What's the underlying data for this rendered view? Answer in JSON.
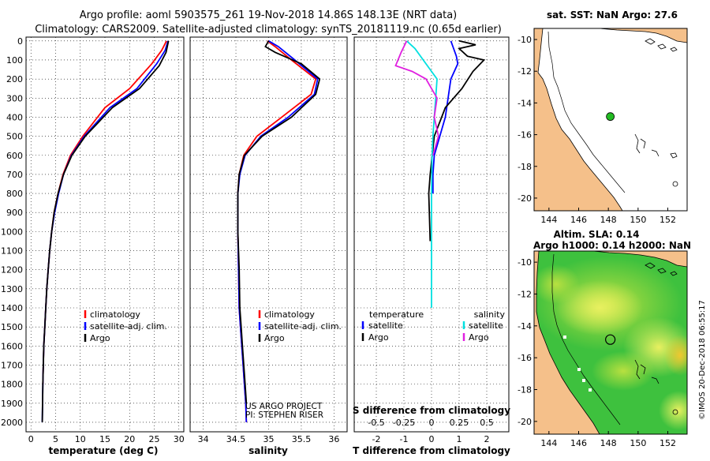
{
  "title_line1": "Argo profile: aoml 5903575_261 19-Nov-2018 14.86S 148.13E (NRT data)",
  "title_line2": "Climatology: CARS2009. Satellite-adjusted climatology: synTS_20181119.nc (0.65d earlier)",
  "colors": {
    "clim": "#ff0000",
    "sat": "#0000ff",
    "argo": "#000000",
    "sat_s": "#00e0e0",
    "argo_s": "#e020e0",
    "land": "#f5c08a",
    "float": "#22bb22"
  },
  "depth_ticks": [
    "0",
    "100",
    "200",
    "300",
    "400",
    "500",
    "600",
    "700",
    "800",
    "900",
    "1000",
    "1100",
    "1200",
    "1300",
    "1400",
    "1500",
    "1600",
    "1700",
    "1800",
    "1900",
    "2000"
  ],
  "attribution_lines": [
    "US ARGO PROJECT",
    "PI: STEPHEN RISER"
  ],
  "sidebar_stamp": "©IMOS 20-Dec-2018 06:55:17",
  "chart_data": [
    {
      "type": "line",
      "name": "temperature-panel",
      "xlabel": "temperature (deg C)",
      "ylabel": "depth",
      "xlim": [
        -1,
        31
      ],
      "ylim": [
        2050,
        -20
      ],
      "xticks": [
        "0",
        "5",
        "10",
        "15",
        "20",
        "25",
        "30"
      ],
      "legend": [
        "climatology",
        "satellite-adj. clim.",
        "Argo"
      ],
      "series": [
        {
          "name": "climatology",
          "color": "#ff0000",
          "x": [
            27.5,
            26.5,
            24.5,
            20,
            15,
            10.5,
            8,
            6.5,
            5.5,
            4.7,
            4.2,
            3.8,
            3.5,
            3.2,
            3.0,
            2.8,
            2.6,
            2.5,
            2.4
          ],
          "y": [
            0,
            50,
            120,
            250,
            350,
            500,
            600,
            700,
            800,
            900,
            1000,
            1100,
            1200,
            1300,
            1400,
            1500,
            1600,
            1700,
            1800
          ]
        },
        {
          "name": "satellite-adj. clim.",
          "color": "#0000ff",
          "x": [
            27.8,
            27.2,
            25.5,
            21.5,
            16,
            10.8,
            8.2,
            6.6,
            5.6,
            4.8,
            4.2,
            3.8,
            3.5,
            3.2,
            3.0,
            2.8,
            2.6,
            2.5,
            2.4,
            2.3
          ],
          "y": [
            0,
            50,
            120,
            250,
            350,
            500,
            600,
            700,
            800,
            900,
            1000,
            1100,
            1200,
            1300,
            1400,
            1500,
            1600,
            1700,
            1800,
            2000
          ]
        },
        {
          "name": "Argo",
          "color": "#000000",
          "x": [
            27.9,
            27.4,
            26,
            22,
            16.5,
            11,
            8.3,
            6.6,
            5.5,
            4.7,
            4.2,
            3.8,
            3.5,
            3.2,
            3.0,
            2.8,
            2.6,
            2.5,
            2.4,
            2.3
          ],
          "y": [
            0,
            60,
            130,
            250,
            350,
            500,
            600,
            700,
            800,
            900,
            1000,
            1100,
            1200,
            1300,
            1400,
            1500,
            1600,
            1700,
            1800,
            2000
          ]
        }
      ]
    },
    {
      "type": "line",
      "name": "salinity-panel",
      "xlabel": "salinity",
      "xlim": [
        33.8,
        36.2
      ],
      "ylim": [
        2050,
        -20
      ],
      "xticks": [
        "34",
        "34.5",
        "35",
        "35.5",
        "36"
      ],
      "legend": [
        "climatology",
        "satellite-adj. clim.",
        "Argo"
      ],
      "series": [
        {
          "name": "climatology",
          "color": "#ff0000",
          "x": [
            34.98,
            35.1,
            35.35,
            35.72,
            35.65,
            35.2,
            34.82,
            34.62,
            34.55,
            34.53,
            34.53,
            34.54,
            34.55,
            34.57,
            34.59,
            34.61,
            34.63,
            34.65,
            34.66
          ],
          "y": [
            0,
            30,
            100,
            200,
            280,
            400,
            500,
            600,
            700,
            800,
            1000,
            1200,
            1400,
            1500,
            1600,
            1700,
            1800,
            1900,
            2000
          ]
        },
        {
          "name": "satellite-adj. clim.",
          "color": "#0000ff",
          "x": [
            35.0,
            35.15,
            35.4,
            35.75,
            35.7,
            35.3,
            34.88,
            34.64,
            34.56,
            34.53,
            34.53,
            34.54,
            34.55,
            34.57,
            34.59,
            34.61,
            34.63,
            34.65,
            34.66
          ],
          "y": [
            0,
            30,
            100,
            200,
            280,
            400,
            500,
            600,
            700,
            800,
            1000,
            1200,
            1400,
            1500,
            1600,
            1700,
            1800,
            1900,
            2000
          ]
        },
        {
          "name": "Argo",
          "color": "#000000",
          "x": [
            35.0,
            34.95,
            35.1,
            35.5,
            35.78,
            35.72,
            35.35,
            34.9,
            34.63,
            34.55,
            34.53,
            34.53,
            34.55,
            34.56,
            34.58,
            34.6,
            34.62,
            34.64,
            34.66
          ],
          "y": [
            0,
            30,
            60,
            120,
            200,
            280,
            400,
            500,
            600,
            700,
            800,
            1000,
            1200,
            1400,
            1500,
            1600,
            1700,
            1800,
            1900
          ]
        }
      ]
    },
    {
      "type": "line",
      "name": "difference-panel",
      "xlabel": "T difference from climatology",
      "x2label": "S difference from climatology",
      "xlim": [
        -2.8,
        2.8
      ],
      "ylim": [
        2050,
        -20
      ],
      "xticks": [
        "-2",
        "-1",
        "0",
        "1",
        "2"
      ],
      "x2ticks": [
        "-0.5",
        "-0.25",
        "0",
        "0.25",
        "0.5"
      ],
      "legend_titles": [
        "temperature",
        "salinity"
      ],
      "legend": [
        "satellite",
        "Argo",
        "satellite",
        "Argo"
      ],
      "series": [
        {
          "name": "temperature satellite",
          "color": "#0000ff",
          "x": [
            0.7,
            0.8,
            0.9,
            0.95,
            0.7,
            0.6,
            0.5,
            0.3,
            0.1,
            0.05,
            0.05
          ],
          "y": [
            0,
            40,
            80,
            120,
            200,
            300,
            400,
            500,
            600,
            700,
            800
          ]
        },
        {
          "name": "temperature Argo",
          "color": "#000000",
          "x": [
            1.0,
            1.6,
            1.0,
            1.3,
            1.9,
            1.5,
            1.1,
            0.5,
            0.1,
            -0.05,
            -0.1,
            -0.05
          ],
          "y": [
            0,
            20,
            40,
            80,
            100,
            160,
            250,
            350,
            500,
            700,
            800,
            1050
          ]
        },
        {
          "name": "salinity satellite",
          "color": "#00e0e0",
          "x": [
            -0.9,
            -0.6,
            -0.3,
            0.2,
            0.15,
            0.1,
            0.05,
            0.02,
            0.0,
            0.0
          ],
          "y": [
            0,
            40,
            100,
            200,
            300,
            400,
            500,
            600,
            800,
            1400
          ]
        },
        {
          "name": "salinity Argo",
          "color": "#e020e0",
          "x": [
            -0.9,
            -1.1,
            -1.3,
            -0.7,
            -0.2,
            0.2,
            0.1,
            0.25,
            0.05
          ],
          "y": [
            0,
            60,
            130,
            160,
            200,
            300,
            400,
            500,
            600
          ]
        }
      ]
    },
    {
      "type": "map",
      "name": "sst-map",
      "title": "sat. SST: NaN Argo: 27.6",
      "xlim": [
        143,
        153.3
      ],
      "ylim": [
        -20.8,
        -9.3
      ],
      "xticks": [
        "144",
        "146",
        "148",
        "150",
        "152"
      ],
      "yticks": [
        "-10",
        "-12",
        "-14",
        "-16",
        "-18",
        "-20"
      ],
      "float_position": {
        "lon": 148.13,
        "lat": -14.86
      }
    },
    {
      "type": "map",
      "name": "sla-map",
      "title1": "Altim. SLA: 0.14",
      "title2": "Argo h1000: 0.14 h2000: NaN",
      "xlim": [
        143,
        153.3
      ],
      "ylim": [
        -20.8,
        -9.3
      ],
      "xticks": [
        "144",
        "146",
        "148",
        "150",
        "152"
      ],
      "yticks": [
        "-10",
        "-12",
        "-14",
        "-16",
        "-18",
        "-20"
      ],
      "float_position": {
        "lon": 148.13,
        "lat": -14.86
      }
    }
  ]
}
